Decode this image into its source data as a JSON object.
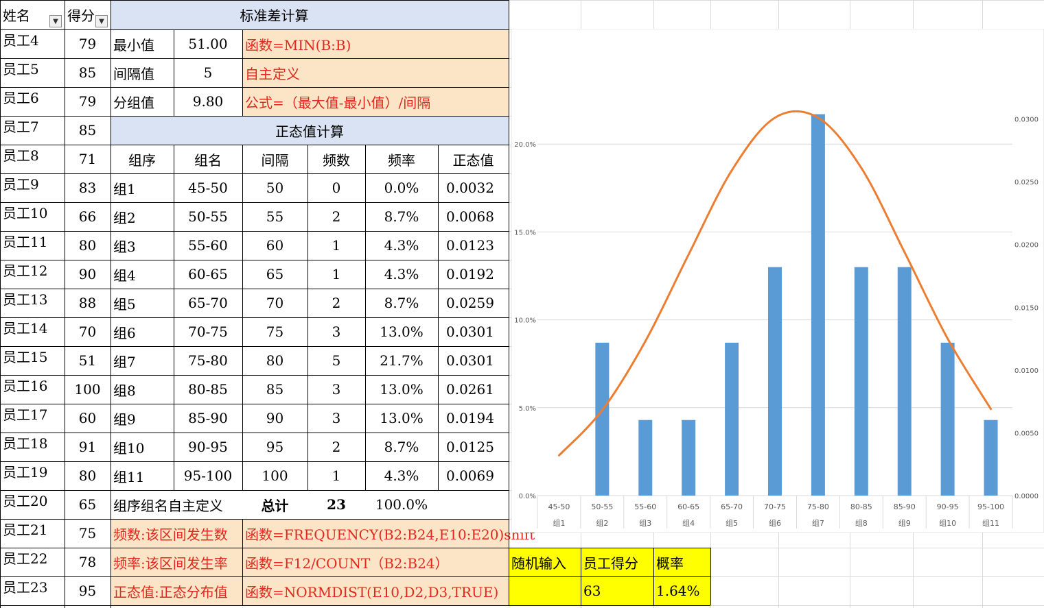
{
  "headers": {
    "name": "姓名",
    "score": "得分",
    "std_title": "标准差计算",
    "normal_title": "正态值计算"
  },
  "employees": [
    {
      "name": "员工4",
      "score": "79"
    },
    {
      "name": "员工5",
      "score": "85"
    },
    {
      "name": "员工6",
      "score": "79"
    },
    {
      "name": "员工7",
      "score": "85"
    },
    {
      "name": "员工8",
      "score": "71"
    },
    {
      "name": "员工9",
      "score": "83"
    },
    {
      "name": "员工10",
      "score": "66"
    },
    {
      "name": "员工11",
      "score": "80"
    },
    {
      "name": "员工12",
      "score": "90"
    },
    {
      "name": "员工13",
      "score": "88"
    },
    {
      "name": "员工14",
      "score": "70"
    },
    {
      "name": "员工15",
      "score": "51"
    },
    {
      "name": "员工16",
      "score": "100"
    },
    {
      "name": "员工17",
      "score": "60"
    },
    {
      "name": "员工18",
      "score": "91"
    },
    {
      "name": "员工19",
      "score": "80"
    },
    {
      "name": "员工20",
      "score": "65"
    },
    {
      "name": "员工21",
      "score": "75"
    },
    {
      "name": "员工22",
      "score": "78"
    },
    {
      "name": "员工23",
      "score": "95"
    }
  ],
  "stats": [
    {
      "label": "最小值",
      "value": "51.00",
      "note": "函数=MIN(B:B)"
    },
    {
      "label": "间隔值",
      "value": "5",
      "note": "自主定义"
    },
    {
      "label": "分组值",
      "value": "9.80",
      "note": "公式=（最大值-最小值）/间隔"
    }
  ],
  "table_headers": [
    "组序",
    "组名",
    "间隔",
    "频数",
    "频率",
    "正态值"
  ],
  "groups": [
    {
      "seq": "组1",
      "name": "45-50",
      "interval": "50",
      "freq": "0",
      "rate": "0.0%",
      "normal": "0.0032"
    },
    {
      "seq": "组2",
      "name": "50-55",
      "interval": "55",
      "freq": "2",
      "rate": "8.7%",
      "normal": "0.0068"
    },
    {
      "seq": "组3",
      "name": "55-60",
      "interval": "60",
      "freq": "1",
      "rate": "4.3%",
      "normal": "0.0123"
    },
    {
      "seq": "组4",
      "name": "60-65",
      "interval": "65",
      "freq": "1",
      "rate": "4.3%",
      "normal": "0.0192"
    },
    {
      "seq": "组5",
      "name": "65-70",
      "interval": "70",
      "freq": "2",
      "rate": "8.7%",
      "normal": "0.0259"
    },
    {
      "seq": "组6",
      "name": "70-75",
      "interval": "75",
      "freq": "3",
      "rate": "13.0%",
      "normal": "0.0301"
    },
    {
      "seq": "组7",
      "name": "75-80",
      "interval": "80",
      "freq": "5",
      "rate": "21.7%",
      "normal": "0.0301"
    },
    {
      "seq": "组8",
      "name": "80-85",
      "interval": "85",
      "freq": "3",
      "rate": "13.0%",
      "normal": "0.0261"
    },
    {
      "seq": "组9",
      "name": "85-90",
      "interval": "90",
      "freq": "3",
      "rate": "13.0%",
      "normal": "0.0194"
    },
    {
      "seq": "组10",
      "name": "90-95",
      "interval": "95",
      "freq": "2",
      "rate": "8.7%",
      "normal": "0.0125"
    },
    {
      "seq": "组11",
      "name": "95-100",
      "interval": "100",
      "freq": "1",
      "rate": "4.3%",
      "normal": "0.0069"
    }
  ],
  "total_row": {
    "label": "组序组名自主定义",
    "total_label": "总计",
    "total_freq": "23",
    "total_rate": "100.0%"
  },
  "notes": [
    {
      "label": "频数:该区间发生数",
      "formula": "函数=FREQUENCY(B2:B24,E10:E20)shift"
    },
    {
      "label": "频率:该区间发生率",
      "formula": "函数=F12/COUNT（B2:B24）"
    },
    {
      "label": "正态值:正态分布值",
      "formula": "函数=NORMDIST(E10,D2,D3,TRUE)"
    }
  ],
  "random_box": {
    "h1": "随机输入",
    "h2": "员工得分",
    "h3": "概率",
    "v1": "",
    "v2": "63",
    "v3": "1.64%"
  },
  "colors": {
    "bar": "#5b9bd5",
    "line": "#ed7d31",
    "header_fill": "#dae3f3",
    "note_fill": "#fce4c6",
    "highlight": "#ffff00",
    "note_text": "#e0281c"
  },
  "chart_data": {
    "type": "bar",
    "categories": [
      [
        "45-50",
        "组1"
      ],
      [
        "50-55",
        "组2"
      ],
      [
        "55-60",
        "组3"
      ],
      [
        "60-65",
        "组4"
      ],
      [
        "65-70",
        "组5"
      ],
      [
        "70-75",
        "组6"
      ],
      [
        "75-80",
        "组7"
      ],
      [
        "80-85",
        "组8"
      ],
      [
        "85-90",
        "组9"
      ],
      [
        "90-95",
        "组10"
      ],
      [
        "95-100",
        "组11"
      ]
    ],
    "series": [
      {
        "type": "bar",
        "axis": "left",
        "values": [
          0.0,
          8.7,
          4.3,
          4.3,
          8.7,
          13.0,
          21.7,
          13.0,
          13.0,
          8.7,
          4.3
        ]
      },
      {
        "type": "line",
        "axis": "right",
        "smooth": true,
        "values": [
          0.0032,
          0.0068,
          0.0123,
          0.0192,
          0.0259,
          0.0301,
          0.0301,
          0.0261,
          0.0194,
          0.0125,
          0.0069
        ]
      }
    ],
    "y_left": {
      "ylim": [
        0,
        25
      ],
      "ticks": [
        "0.0%",
        "5.0%",
        "10.0%",
        "15.0%",
        "20.0%"
      ],
      "tick_values": [
        0,
        5,
        10,
        15,
        20
      ]
    },
    "y_right": {
      "ylim": [
        0,
        0.035
      ],
      "ticks": [
        "0.0000",
        "0.0050",
        "0.0100",
        "0.0150",
        "0.0200",
        "0.0250",
        "0.0300"
      ],
      "tick_values": [
        0,
        0.005,
        0.01,
        0.015,
        0.02,
        0.025,
        0.03
      ]
    },
    "grid": true,
    "legend": "none"
  }
}
